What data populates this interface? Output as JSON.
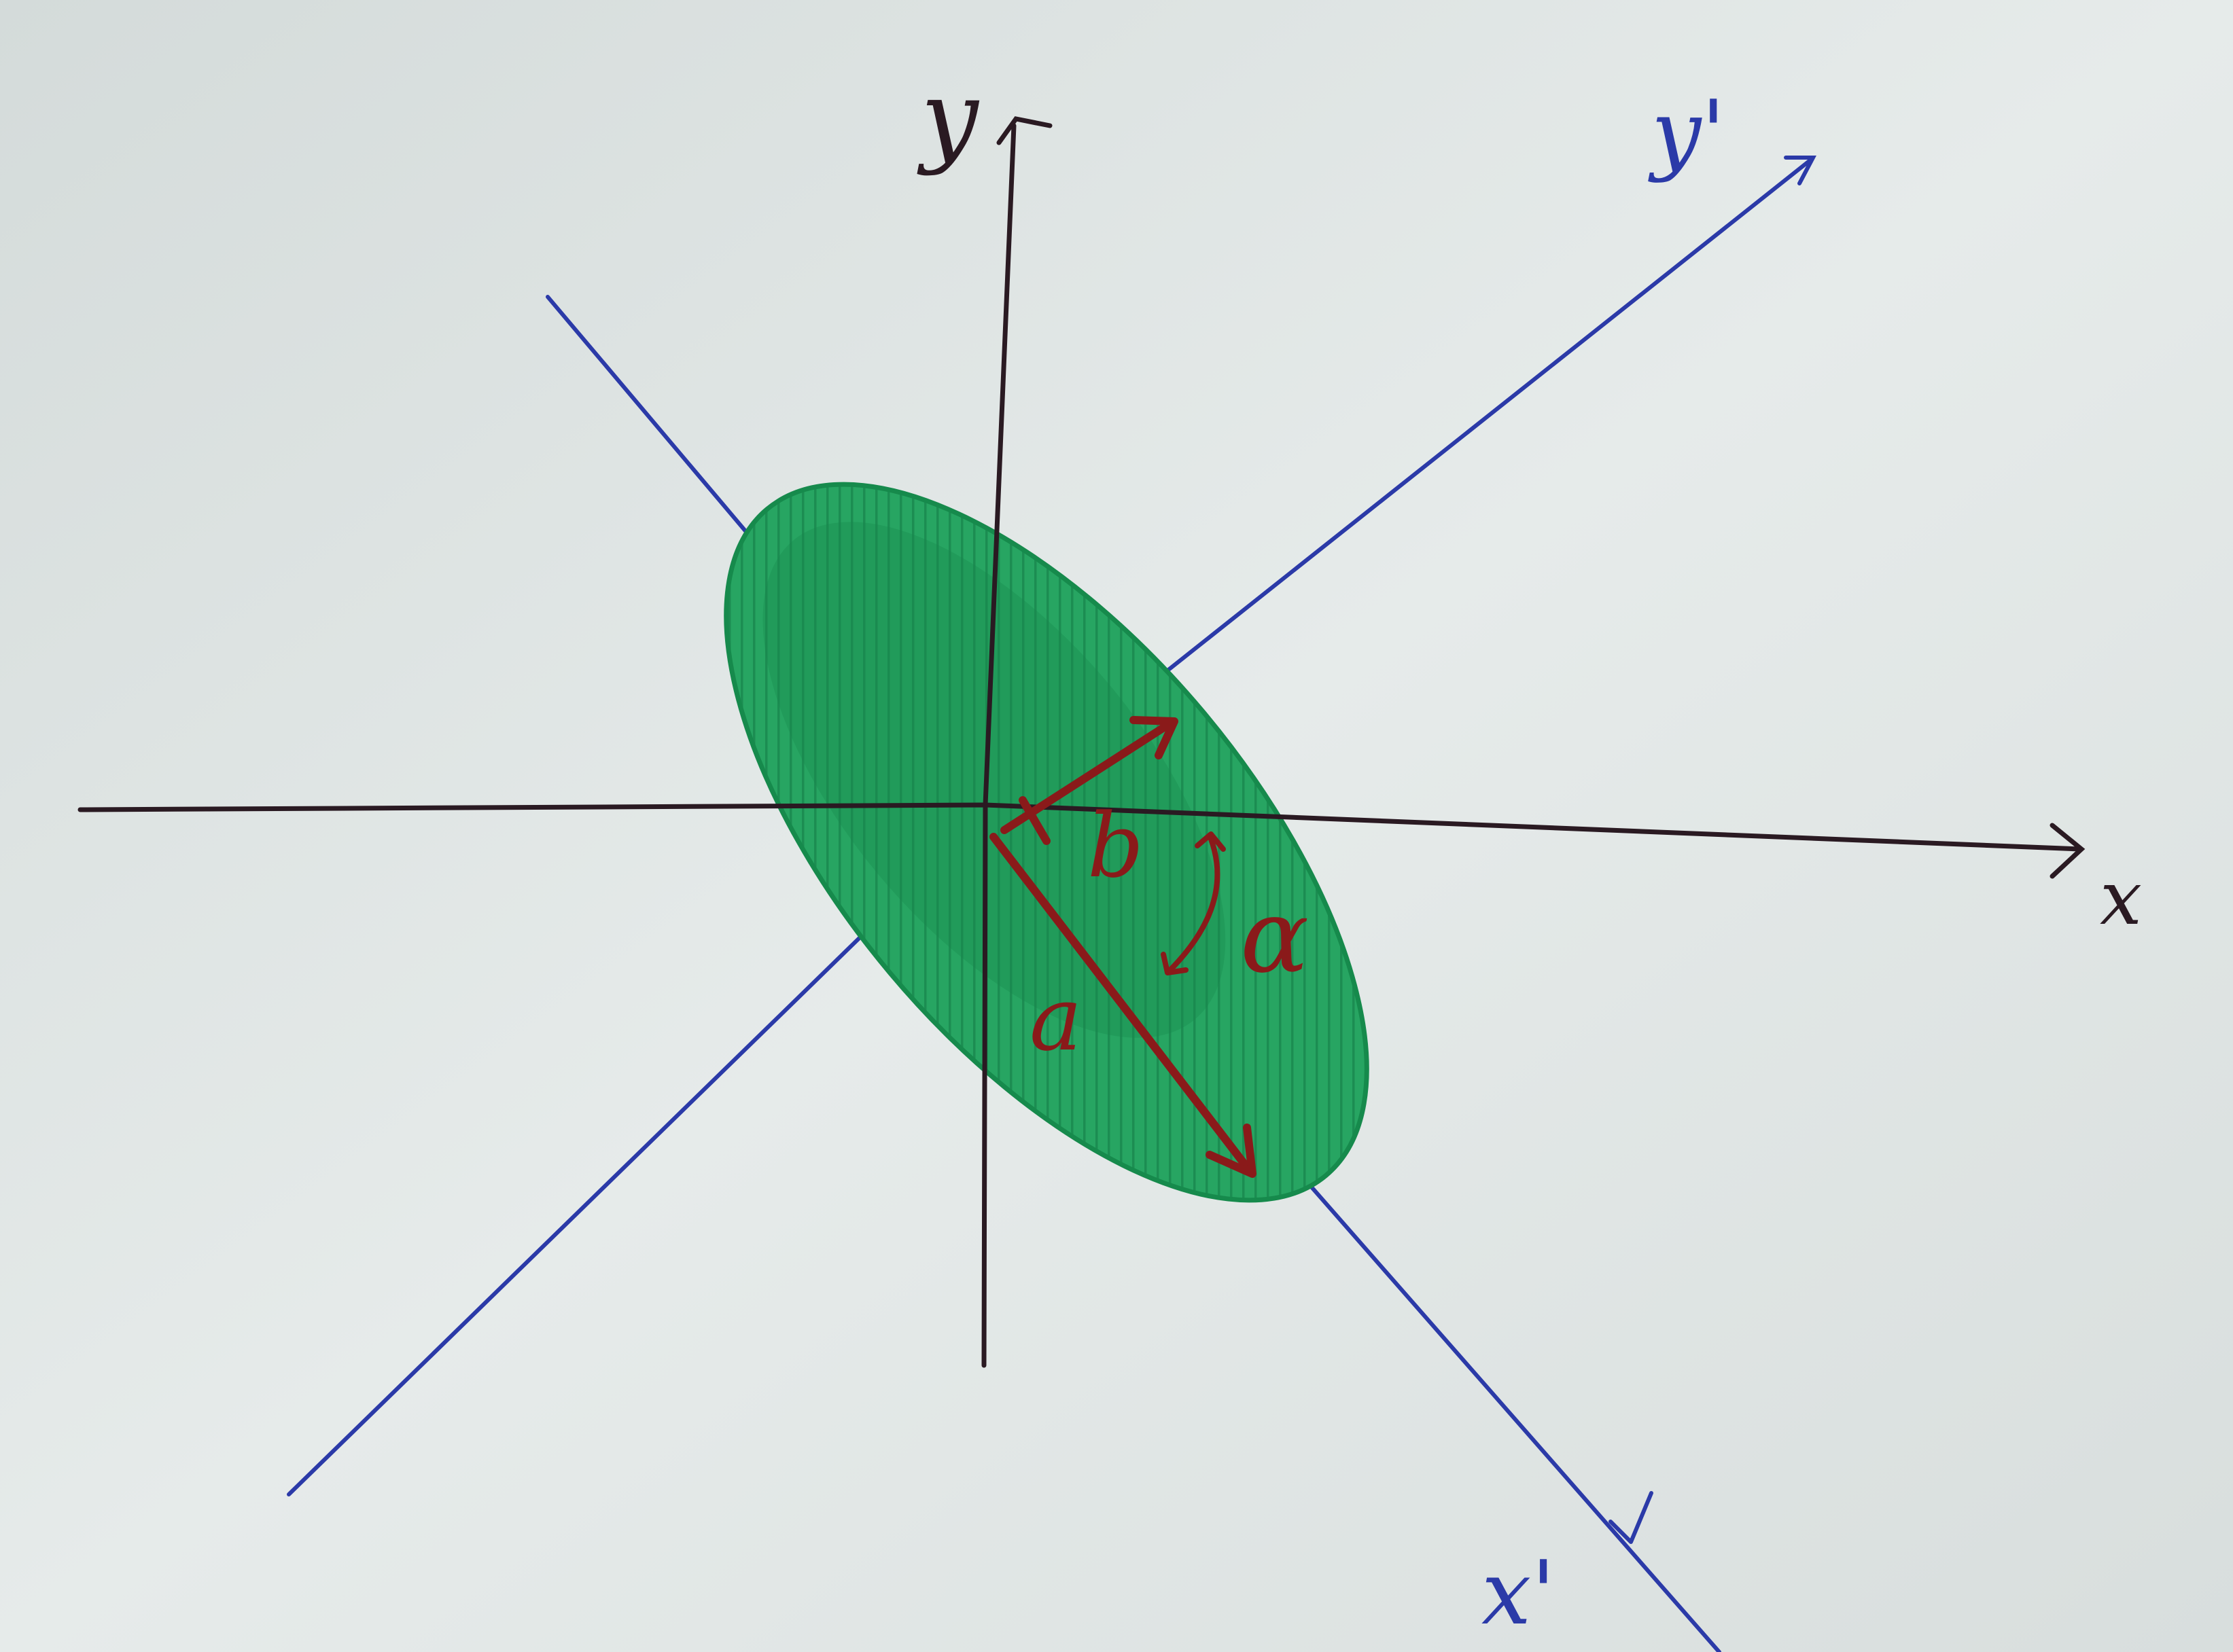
{
  "labels": {
    "x_axis": "x",
    "y_axis": "y",
    "x_prime_axis": "x'",
    "y_prime_axis": "y'",
    "semi_major": "a",
    "semi_minor": "b",
    "angle": "α"
  },
  "colors": {
    "paper": "#dfe5e4",
    "original_axes": "#2a1a22",
    "rotated_axes": "#2b3aa8",
    "ellipse_fill": "#1f9a5a",
    "annotation": "#8a1a1a"
  }
}
